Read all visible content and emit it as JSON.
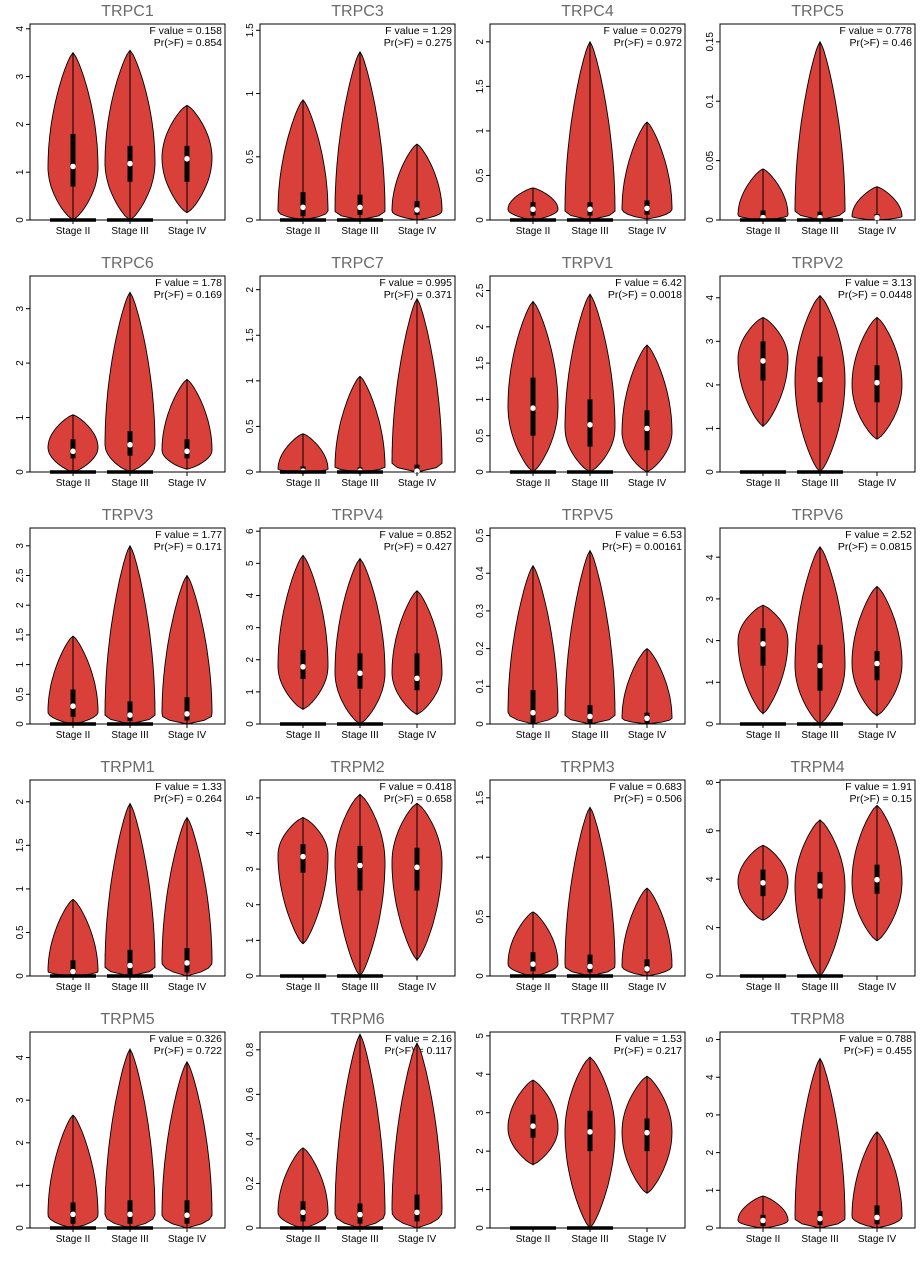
{
  "colors": {
    "violin_fill": "#d9403a",
    "box": "#000000",
    "median": "#ffffff",
    "title": "#6a6a6a"
  },
  "chart_data": [
    {
      "type": "violin",
      "title": "TRPC1",
      "stat": {
        "f": "F value = 0.158",
        "p": "Pr(>F) = 0.854"
      },
      "categories": [
        "Stage II",
        "Stage III",
        "Stage IV"
      ],
      "yticks": [
        0,
        1,
        2,
        3,
        4
      ],
      "ylim": [
        0,
        4.1
      ],
      "groups": [
        {
          "min": 0,
          "q1": 0.7,
          "median": 1.12,
          "q3": 1.8,
          "max": 3.5,
          "mode": 1.1,
          "low_bar": true
        },
        {
          "min": 0,
          "q1": 0.8,
          "median": 1.18,
          "q3": 1.55,
          "max": 3.55,
          "mode": 1.2,
          "low_bar": true
        },
        {
          "min": 0.15,
          "q1": 0.8,
          "median": 1.28,
          "q3": 1.55,
          "max": 2.4,
          "mode": 1.3,
          "low_bar": false
        }
      ]
    },
    {
      "type": "violin",
      "title": "TRPC3",
      "stat": {
        "f": "F value = 1.29",
        "p": "Pr(>F) = 0.275"
      },
      "categories": [
        "Stage II",
        "Stage III",
        "Stage IV"
      ],
      "yticks": [
        0,
        0.5,
        1.0,
        1.5
      ],
      "ylim": [
        0,
        1.55
      ],
      "groups": [
        {
          "min": 0,
          "q1": 0.03,
          "median": 0.1,
          "q3": 0.22,
          "max": 0.95,
          "mode": 0.07,
          "low_bar": true
        },
        {
          "min": 0,
          "q1": 0.04,
          "median": 0.1,
          "q3": 0.2,
          "max": 1.33,
          "mode": 0.07,
          "low_bar": true
        },
        {
          "min": 0,
          "q1": 0.04,
          "median": 0.08,
          "q3": 0.15,
          "max": 0.6,
          "mode": 0.07,
          "low_bar": false
        }
      ]
    },
    {
      "type": "violin",
      "title": "TRPC4",
      "stat": {
        "f": "F value = 0.0279",
        "p": "Pr(>F) = 0.972"
      },
      "categories": [
        "Stage II",
        "Stage III",
        "Stage IV"
      ],
      "yticks": [
        0,
        0.5,
        1.0,
        1.5,
        2.0
      ],
      "ylim": [
        0,
        2.2
      ],
      "groups": [
        {
          "min": 0,
          "q1": 0.05,
          "median": 0.12,
          "q3": 0.2,
          "max": 0.36,
          "mode": 0.12,
          "low_bar": true
        },
        {
          "min": 0,
          "q1": 0.05,
          "median": 0.12,
          "q3": 0.2,
          "max": 2.0,
          "mode": 0.1,
          "low_bar": true
        },
        {
          "min": 0.01,
          "q1": 0.06,
          "median": 0.13,
          "q3": 0.22,
          "max": 1.1,
          "mode": 0.12,
          "low_bar": false
        }
      ]
    },
    {
      "type": "violin",
      "title": "TRPC5",
      "stat": {
        "f": "F value = 0.778",
        "p": "Pr(>F) = 0.46"
      },
      "categories": [
        "Stage II",
        "Stage III",
        "Stage IV"
      ],
      "yticks": [
        0,
        0.05,
        0.1,
        0.15
      ],
      "ylim": [
        0,
        0.165
      ],
      "groups": [
        {
          "min": 0,
          "q1": 0,
          "median": 0.002,
          "q3": 0.008,
          "max": 0.043,
          "mode": 0.004,
          "low_bar": true
        },
        {
          "min": 0,
          "q1": 0,
          "median": 0.002,
          "q3": 0.007,
          "max": 0.15,
          "mode": 0.003,
          "low_bar": true
        },
        {
          "min": 0,
          "q1": 0,
          "median": 0.002,
          "q3": 0.005,
          "max": 0.028,
          "mode": 0.003,
          "low_bar": false
        }
      ]
    },
    {
      "type": "violin",
      "title": "TRPC6",
      "stat": {
        "f": "F value = 1.78",
        "p": "Pr(>F) = 0.169"
      },
      "categories": [
        "Stage II",
        "Stage III",
        "Stage IV"
      ],
      "yticks": [
        0,
        1,
        2,
        3
      ],
      "ylim": [
        0,
        3.6
      ],
      "groups": [
        {
          "min": 0,
          "q1": 0.25,
          "median": 0.38,
          "q3": 0.6,
          "max": 1.05,
          "mode": 0.45,
          "low_bar": true
        },
        {
          "min": 0,
          "q1": 0.3,
          "median": 0.5,
          "q3": 0.75,
          "max": 3.3,
          "mode": 0.5,
          "low_bar": true
        },
        {
          "min": 0.05,
          "q1": 0.25,
          "median": 0.38,
          "q3": 0.6,
          "max": 1.7,
          "mode": 0.4,
          "low_bar": false
        }
      ]
    },
    {
      "type": "violin",
      "title": "TRPC7",
      "stat": {
        "f": "F value = 0.995",
        "p": "Pr(>F) = 0.371"
      },
      "categories": [
        "Stage II",
        "Stage III",
        "Stage IV"
      ],
      "yticks": [
        0,
        0.5,
        1.0,
        1.5,
        2.0
      ],
      "ylim": [
        0,
        2.15
      ],
      "groups": [
        {
          "min": 0,
          "q1": 0,
          "median": 0.01,
          "q3": 0.06,
          "max": 0.42,
          "mode": 0.03,
          "low_bar": true
        },
        {
          "min": 0,
          "q1": 0,
          "median": 0.01,
          "q3": 0.05,
          "max": 1.05,
          "mode": 0.03,
          "low_bar": true
        },
        {
          "min": 0,
          "q1": 0,
          "median": 0.01,
          "q3": 0.08,
          "max": 1.9,
          "mode": 0.06,
          "low_bar": false
        }
      ]
    },
    {
      "type": "violin",
      "title": "TRPV1",
      "stat": {
        "f": "F value = 6.42",
        "p": "Pr(>F) = 0.0018"
      },
      "categories": [
        "Stage II",
        "Stage III",
        "Stage IV"
      ],
      "yticks": [
        0,
        0.5,
        1.0,
        1.5,
        2.0,
        2.5
      ],
      "ylim": [
        0,
        2.7
      ],
      "groups": [
        {
          "min": 0,
          "q1": 0.5,
          "median": 0.88,
          "q3": 1.3,
          "max": 2.35,
          "mode": 0.9,
          "low_bar": true
        },
        {
          "min": 0,
          "q1": 0.35,
          "median": 0.65,
          "q3": 1.0,
          "max": 2.45,
          "mode": 0.6,
          "low_bar": true
        },
        {
          "min": 0,
          "q1": 0.3,
          "median": 0.6,
          "q3": 0.85,
          "max": 1.75,
          "mode": 0.55,
          "low_bar": false
        }
      ]
    },
    {
      "type": "violin",
      "title": "TRPV2",
      "stat": {
        "f": "F value = 3.13",
        "p": "Pr(>F) = 0.0448"
      },
      "categories": [
        "Stage II",
        "Stage III",
        "Stage IV"
      ],
      "yticks": [
        0,
        1,
        2,
        3,
        4
      ],
      "ylim": [
        0,
        4.5
      ],
      "groups": [
        {
          "min": 1.05,
          "q1": 2.1,
          "median": 2.55,
          "q3": 3.0,
          "max": 3.55,
          "mode": 2.6,
          "low_bar": true
        },
        {
          "min": 0,
          "q1": 1.6,
          "median": 2.12,
          "q3": 2.65,
          "max": 4.05,
          "mode": 2.1,
          "low_bar": true
        },
        {
          "min": 0.75,
          "q1": 1.6,
          "median": 2.05,
          "q3": 2.45,
          "max": 3.55,
          "mode": 2.0,
          "low_bar": false
        }
      ]
    },
    {
      "type": "violin",
      "title": "TRPV3",
      "stat": {
        "f": "F value = 1.77",
        "p": "Pr(>F) = 0.171"
      },
      "categories": [
        "Stage II",
        "Stage III",
        "Stage IV"
      ],
      "yticks": [
        0,
        0.5,
        1.0,
        1.5,
        2.0,
        2.5,
        3.0
      ],
      "ylim": [
        0,
        3.3
      ],
      "groups": [
        {
          "min": 0,
          "q1": 0.12,
          "median": 0.3,
          "q3": 0.58,
          "max": 1.48,
          "mode": 0.2,
          "low_bar": true
        },
        {
          "min": 0,
          "q1": 0.05,
          "median": 0.15,
          "q3": 0.38,
          "max": 3.0,
          "mode": 0.1,
          "low_bar": true
        },
        {
          "min": 0,
          "q1": 0.06,
          "median": 0.17,
          "q3": 0.45,
          "max": 2.5,
          "mode": 0.15,
          "low_bar": false
        }
      ]
    },
    {
      "type": "violin",
      "title": "TRPV4",
      "stat": {
        "f": "F value = 0.852",
        "p": "Pr(>F) = 0.427"
      },
      "categories": [
        "Stage II",
        "Stage III",
        "Stage IV"
      ],
      "yticks": [
        0,
        1,
        2,
        3,
        4,
        5,
        6
      ],
      "ylim": [
        0,
        6.1
      ],
      "groups": [
        {
          "min": 0.45,
          "q1": 1.4,
          "median": 1.78,
          "q3": 2.3,
          "max": 5.25,
          "mode": 1.8,
          "low_bar": true
        },
        {
          "min": 0,
          "q1": 1.1,
          "median": 1.58,
          "q3": 2.2,
          "max": 5.15,
          "mode": 1.6,
          "low_bar": true
        },
        {
          "min": 0.3,
          "q1": 1.05,
          "median": 1.42,
          "q3": 2.2,
          "max": 4.15,
          "mode": 1.6,
          "low_bar": false
        }
      ]
    },
    {
      "type": "violin",
      "title": "TRPV5",
      "stat": {
        "f": "F value = 6.53",
        "p": "Pr(>F) = 0.00161"
      },
      "categories": [
        "Stage II",
        "Stage III",
        "Stage IV"
      ],
      "yticks": [
        0,
        0.1,
        0.2,
        0.3,
        0.4,
        0.5
      ],
      "ylim": [
        0,
        0.52
      ],
      "groups": [
        {
          "min": 0,
          "q1": 0,
          "median": 0.03,
          "q3": 0.09,
          "max": 0.42,
          "mode": 0.03,
          "low_bar": false
        },
        {
          "min": 0,
          "q1": 0,
          "median": 0.02,
          "q3": 0.05,
          "max": 0.46,
          "mode": 0.02,
          "low_bar": false
        },
        {
          "min": 0,
          "q1": 0,
          "median": 0.015,
          "q3": 0.03,
          "max": 0.2,
          "mode": 0.015,
          "low_bar": false
        }
      ]
    },
    {
      "type": "violin",
      "title": "TRPV6",
      "stat": {
        "f": "F value = 2.52",
        "p": "Pr(>F) = 0.0815"
      },
      "categories": [
        "Stage II",
        "Stage III",
        "Stage IV"
      ],
      "yticks": [
        0,
        1,
        2,
        3,
        4
      ],
      "ylim": [
        0,
        4.7
      ],
      "groups": [
        {
          "min": 0.25,
          "q1": 1.4,
          "median": 1.92,
          "q3": 2.3,
          "max": 2.85,
          "mode": 2.0,
          "low_bar": true
        },
        {
          "min": 0,
          "q1": 0.8,
          "median": 1.4,
          "q3": 1.9,
          "max": 4.25,
          "mode": 1.4,
          "low_bar": true
        },
        {
          "min": 0.2,
          "q1": 1.05,
          "median": 1.45,
          "q3": 1.75,
          "max": 3.3,
          "mode": 1.45,
          "low_bar": false
        }
      ]
    },
    {
      "type": "violin",
      "title": "TRPM1",
      "stat": {
        "f": "F value = 1.33",
        "p": "Pr(>F) = 0.264"
      },
      "categories": [
        "Stage II",
        "Stage III",
        "Stage IV"
      ],
      "yticks": [
        0,
        0.5,
        1.0,
        1.5,
        2.0
      ],
      "ylim": [
        0,
        2.25
      ],
      "groups": [
        {
          "min": 0,
          "q1": 0,
          "median": 0.05,
          "q3": 0.18,
          "max": 0.88,
          "mode": 0.05,
          "low_bar": true
        },
        {
          "min": 0,
          "q1": 0.02,
          "median": 0.12,
          "q3": 0.3,
          "max": 1.98,
          "mode": 0.1,
          "low_bar": true
        },
        {
          "min": 0,
          "q1": 0.04,
          "median": 0.15,
          "q3": 0.32,
          "max": 1.82,
          "mode": 0.15,
          "low_bar": false
        }
      ]
    },
    {
      "type": "violin",
      "title": "TRPM2",
      "stat": {
        "f": "F value = 0.418",
        "p": "Pr(>F) = 0.658"
      },
      "categories": [
        "Stage II",
        "Stage III",
        "Stage IV"
      ],
      "yticks": [
        0,
        1,
        2,
        3,
        4,
        5
      ],
      "ylim": [
        0,
        5.5
      ],
      "groups": [
        {
          "min": 0.9,
          "q1": 2.9,
          "median": 3.35,
          "q3": 3.7,
          "max": 4.45,
          "mode": 3.4,
          "low_bar": true
        },
        {
          "min": 0,
          "q1": 2.4,
          "median": 3.1,
          "q3": 3.65,
          "max": 5.1,
          "mode": 3.2,
          "low_bar": true
        },
        {
          "min": 0.45,
          "q1": 2.4,
          "median": 3.05,
          "q3": 3.6,
          "max": 4.85,
          "mode": 3.2,
          "low_bar": false
        }
      ]
    },
    {
      "type": "violin",
      "title": "TRPM3",
      "stat": {
        "f": "F value = 0.683",
        "p": "Pr(>F) = 0.506"
      },
      "categories": [
        "Stage II",
        "Stage III",
        "Stage IV"
      ],
      "yticks": [
        0,
        0.5,
        1.0,
        1.5
      ],
      "ylim": [
        0,
        1.65
      ],
      "groups": [
        {
          "min": 0,
          "q1": 0.04,
          "median": 0.1,
          "q3": 0.2,
          "max": 0.54,
          "mode": 0.1,
          "low_bar": true
        },
        {
          "min": 0,
          "q1": 0.03,
          "median": 0.08,
          "q3": 0.18,
          "max": 1.42,
          "mode": 0.08,
          "low_bar": true
        },
        {
          "min": 0,
          "q1": 0.03,
          "median": 0.06,
          "q3": 0.14,
          "max": 0.74,
          "mode": 0.08,
          "low_bar": false
        }
      ]
    },
    {
      "type": "violin",
      "title": "TRPM4",
      "stat": {
        "f": "F value = 1.91",
        "p": "Pr(>F) = 0.15"
      },
      "categories": [
        "Stage II",
        "Stage III",
        "Stage IV"
      ],
      "yticks": [
        0,
        2,
        4,
        6,
        8
      ],
      "ylim": [
        0,
        8.1
      ],
      "groups": [
        {
          "min": 2.3,
          "q1": 3.3,
          "median": 3.85,
          "q3": 4.4,
          "max": 5.4,
          "mode": 3.9,
          "low_bar": true
        },
        {
          "min": 0,
          "q1": 3.2,
          "median": 3.72,
          "q3": 4.3,
          "max": 6.45,
          "mode": 3.7,
          "low_bar": true
        },
        {
          "min": 1.45,
          "q1": 3.4,
          "median": 3.98,
          "q3": 4.6,
          "max": 7.05,
          "mode": 3.9,
          "low_bar": false
        }
      ]
    },
    {
      "type": "violin",
      "title": "TRPM5",
      "stat": {
        "f": "F value = 0.326",
        "p": "Pr(>F) = 0.722"
      },
      "categories": [
        "Stage II",
        "Stage III",
        "Stage IV"
      ],
      "yticks": [
        0,
        1,
        2,
        3,
        4
      ],
      "ylim": [
        0,
        4.6
      ],
      "groups": [
        {
          "min": 0,
          "q1": 0.1,
          "median": 0.32,
          "q3": 0.6,
          "max": 2.65,
          "mode": 0.3,
          "low_bar": true
        },
        {
          "min": 0,
          "q1": 0.1,
          "median": 0.32,
          "q3": 0.65,
          "max": 4.2,
          "mode": 0.3,
          "low_bar": true
        },
        {
          "min": 0,
          "q1": 0.1,
          "median": 0.3,
          "q3": 0.65,
          "max": 3.9,
          "mode": 0.3,
          "low_bar": false
        }
      ]
    },
    {
      "type": "violin",
      "title": "TRPM6",
      "stat": {
        "f": "F value = 2.16",
        "p": "Pr(>F) = 0.117"
      },
      "categories": [
        "Stage II",
        "Stage III",
        "Stage IV"
      ],
      "yticks": [
        0,
        0.2,
        0.4,
        0.6,
        0.8
      ],
      "ylim": [
        0,
        0.88
      ],
      "groups": [
        {
          "min": 0,
          "q1": 0.03,
          "median": 0.07,
          "q3": 0.12,
          "max": 0.36,
          "mode": 0.07,
          "low_bar": true
        },
        {
          "min": 0,
          "q1": 0.02,
          "median": 0.06,
          "q3": 0.11,
          "max": 0.87,
          "mode": 0.06,
          "low_bar": true
        },
        {
          "min": 0,
          "q1": 0.03,
          "median": 0.07,
          "q3": 0.15,
          "max": 0.83,
          "mode": 0.07,
          "low_bar": false
        }
      ]
    },
    {
      "type": "violin",
      "title": "TRPM7",
      "stat": {
        "f": "F value = 1.53",
        "p": "Pr(>F) = 0.217"
      },
      "categories": [
        "Stage II",
        "Stage III",
        "Stage IV"
      ],
      "yticks": [
        0,
        1,
        2,
        3,
        4,
        5
      ],
      "ylim": [
        0,
        5.1
      ],
      "groups": [
        {
          "min": 1.65,
          "q1": 2.35,
          "median": 2.65,
          "q3": 2.95,
          "max": 3.85,
          "mode": 2.6,
          "low_bar": true
        },
        {
          "min": 0,
          "q1": 2.0,
          "median": 2.5,
          "q3": 3.05,
          "max": 4.45,
          "mode": 2.5,
          "low_bar": true
        },
        {
          "min": 0.9,
          "q1": 2.0,
          "median": 2.48,
          "q3": 2.85,
          "max": 3.95,
          "mode": 2.5,
          "low_bar": false
        }
      ]
    },
    {
      "type": "violin",
      "title": "TRPM8",
      "stat": {
        "f": "F value = 0.788",
        "p": "Pr(>F) = 0.455"
      },
      "categories": [
        "Stage II",
        "Stage III",
        "Stage IV"
      ],
      "yticks": [
        0,
        1,
        2,
        3,
        4,
        5
      ],
      "ylim": [
        0,
        5.2
      ],
      "groups": [
        {
          "min": 0,
          "q1": 0.05,
          "median": 0.2,
          "q3": 0.35,
          "max": 0.85,
          "mode": 0.2,
          "low_bar": false
        },
        {
          "min": 0,
          "q1": 0.08,
          "median": 0.25,
          "q3": 0.45,
          "max": 4.5,
          "mode": 0.25,
          "low_bar": false
        },
        {
          "min": 0,
          "q1": 0.1,
          "median": 0.28,
          "q3": 0.6,
          "max": 2.55,
          "mode": 0.3,
          "low_bar": false
        }
      ]
    }
  ]
}
